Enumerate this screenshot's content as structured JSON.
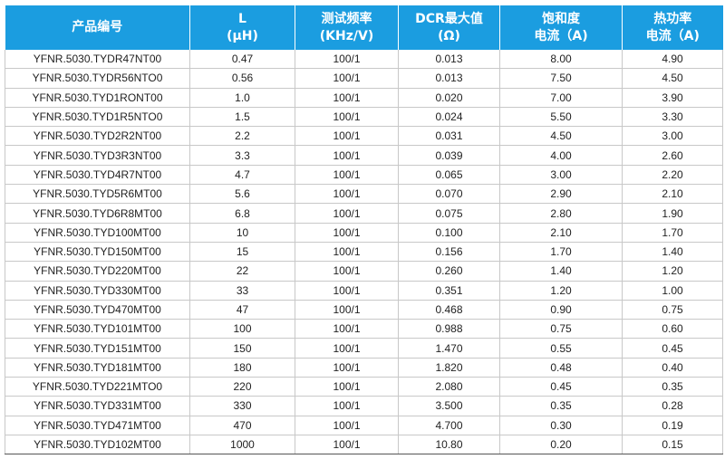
{
  "table": {
    "headers": [
      [
        "产品编号"
      ],
      [
        "L",
        "(µH)"
      ],
      [
        "测试频率",
        "(KHz/V)"
      ],
      [
        "DCR最大值",
        "(Ω)"
      ],
      [
        "饱和度",
        "电流（A)"
      ],
      [
        "热功率",
        "电流（A)"
      ]
    ],
    "rows": [
      [
        "YFNR.5030.TYDR47NT00",
        "0.47",
        "100/1",
        "0.013",
        "8.00",
        "4.90"
      ],
      [
        "YFNR.5030.TYDR56NTO0",
        "0.56",
        "100/1",
        "0.013",
        "7.50",
        "4.50"
      ],
      [
        "YFNR.5030.TYD1RONT00",
        "1.0",
        "100/1",
        "0.020",
        "7.00",
        "3.90"
      ],
      [
        "YFNR.5030.TYD1R5NTO0",
        "1.5",
        "100/1",
        "0.024",
        "5.50",
        "3.30"
      ],
      [
        "YFNR.5030.TYD2R2NT00",
        "2.2",
        "100/1",
        "0.031",
        "4.50",
        "3.00"
      ],
      [
        "YFNR.5030.TYD3R3NT00",
        "3.3",
        "100/1",
        "0.039",
        "4.00",
        "2.60"
      ],
      [
        "YFNR.5030.TYD4R7NT00",
        "4.7",
        "100/1",
        "0.065",
        "3.00",
        "2.20"
      ],
      [
        "YFNR.5030.TYD5R6MT00",
        "5.6",
        "100/1",
        "0.070",
        "2.90",
        "2.10"
      ],
      [
        "YFNR.5030.TYD6R8MT00",
        "6.8",
        "100/1",
        "0.075",
        "2.80",
        "1.90"
      ],
      [
        "YFNR.5030.TYD100MT00",
        "10",
        "100/1",
        "0.100",
        "2.10",
        "1.70"
      ],
      [
        "YFNR.5030.TYD150MT00",
        "15",
        "100/1",
        "0.156",
        "1.70",
        "1.40"
      ],
      [
        "YFNR.5030.TYD220MT00",
        "22",
        "100/1",
        "0.260",
        "1.40",
        "1.20"
      ],
      [
        "YFNR.5030.TYD330MT00",
        "33",
        "100/1",
        "0.351",
        "1.20",
        "1.00"
      ],
      [
        "YFNR.5030.TYD470MT00",
        "47",
        "100/1",
        "0.468",
        "0.90",
        "0.75"
      ],
      [
        "YFNR.5030.TYD101MT00",
        "100",
        "100/1",
        "0.988",
        "0.75",
        "0.60"
      ],
      [
        "YFNR.5030.TYD151MT00",
        "150",
        "100/1",
        "1.470",
        "0.55",
        "0.45"
      ],
      [
        "YFNR.5030.TYD181MT00",
        "180",
        "100/1",
        "1.820",
        "0.48",
        "0.40"
      ],
      [
        "YFNR.5030.TYD221MTO0",
        "220",
        "100/1",
        "2.080",
        "0.45",
        "0.35"
      ],
      [
        "YFNR.5030.TYD331MT00",
        "330",
        "100/1",
        "3.500",
        "0.35",
        "0.28"
      ],
      [
        "YFNR.5030.TYD471MT00",
        "470",
        "100/1",
        "4.700",
        "0.30",
        "0.19"
      ],
      [
        "YFNR.5030.TYD102MT00",
        "1000",
        "100/1",
        "10.80",
        "0.20",
        "0.15"
      ]
    ]
  }
}
